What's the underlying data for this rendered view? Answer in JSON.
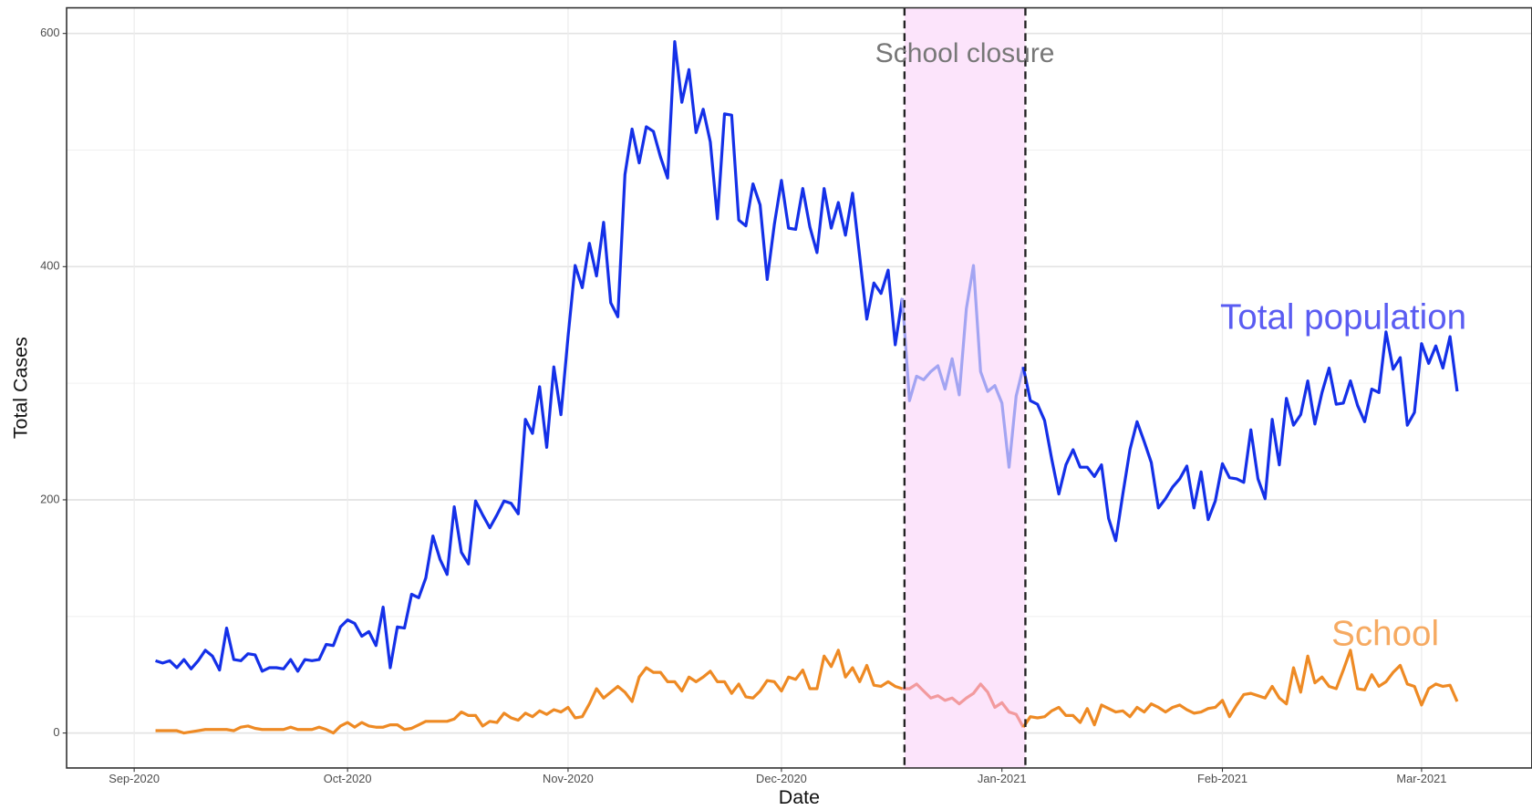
{
  "chart_data": {
    "type": "line",
    "x_label": "Date",
    "y_label": "Total Cases",
    "xlim": [
      -9.5,
      196.5
    ],
    "ylim": [
      -30,
      622
    ],
    "xticks": [
      {
        "value": 0,
        "label": "Sep-2020"
      },
      {
        "value": 30,
        "label": "Oct-2020"
      },
      {
        "value": 61,
        "label": "Nov-2020"
      },
      {
        "value": 91,
        "label": "Dec-2020"
      },
      {
        "value": 122,
        "label": "Jan-2021"
      },
      {
        "value": 153,
        "label": "Feb-2021"
      },
      {
        "value": 181,
        "label": "Mar-2021"
      }
    ],
    "yticks": [
      0,
      200,
      400,
      600
    ],
    "yminorticks": [
      100,
      300,
      500
    ],
    "grid": true,
    "shade": {
      "x": [
        108.3,
        125.3
      ],
      "label": "School closure",
      "color": "#fce4fb"
    },
    "x": [
      3,
      4,
      5,
      6,
      7,
      8,
      9,
      10,
      11,
      12,
      13,
      14,
      15,
      16,
      17,
      18,
      19,
      20,
      21,
      22,
      23,
      24,
      25,
      26,
      27,
      28,
      29,
      30,
      31,
      32,
      33,
      34,
      35,
      36,
      37,
      38,
      39,
      40,
      41,
      42,
      43,
      44,
      45,
      46,
      47,
      48,
      49,
      50,
      51,
      52,
      53,
      54,
      55,
      56,
      57,
      58,
      59,
      60,
      61,
      62,
      63,
      64,
      65,
      66,
      67,
      68,
      69,
      70,
      71,
      72,
      73,
      74,
      75,
      76,
      77,
      78,
      79,
      80,
      81,
      82,
      83,
      84,
      85,
      86,
      87,
      88,
      89,
      90,
      91,
      92,
      93,
      94,
      95,
      96,
      97,
      98,
      99,
      100,
      101,
      102,
      103,
      104,
      105,
      106,
      107,
      108,
      109,
      110,
      111,
      112,
      113,
      114,
      115,
      116,
      117,
      118,
      119,
      120,
      121,
      122,
      123,
      124,
      125,
      126,
      127,
      128,
      129,
      130,
      131,
      132,
      133,
      134,
      135,
      136,
      137,
      138,
      139,
      140,
      141,
      142,
      143,
      144,
      145,
      146,
      147,
      148,
      149,
      150,
      151,
      152,
      153,
      154,
      155,
      156,
      157,
      158,
      159,
      160,
      161,
      162,
      163,
      164,
      165,
      166,
      167,
      168,
      169,
      170,
      171,
      172,
      173,
      174,
      175,
      176,
      177,
      178,
      179,
      180,
      181,
      182,
      183,
      184,
      185,
      186
    ],
    "series": [
      {
        "name": "Total population",
        "color": "#1430e8",
        "shade_color": "#a3a4f2",
        "label_color": "#5a5cf2",
        "values": [
          62,
          60,
          62,
          56,
          63,
          55,
          62,
          71,
          66,
          54,
          90,
          63,
          62,
          68,
          67,
          53,
          56,
          56,
          55,
          63,
          53,
          63,
          62,
          63,
          76,
          75,
          91,
          97,
          94,
          83,
          87,
          75,
          108,
          56,
          91,
          90,
          119,
          116,
          133,
          169,
          149,
          136,
          194,
          155,
          145,
          199,
          187,
          176,
          187,
          199,
          197,
          188,
          269,
          257,
          297,
          245,
          314,
          273,
          340,
          401,
          382,
          420,
          392,
          438,
          369,
          357,
          479,
          518,
          489,
          520,
          516,
          494,
          476,
          593,
          541,
          569,
          515,
          535,
          507,
          441,
          531,
          530,
          440,
          435,
          471,
          453,
          389,
          436,
          474,
          433,
          432,
          467,
          434,
          412,
          467,
          433,
          455,
          427,
          463,
          409,
          355,
          386,
          377,
          397,
          333,
          373,
          285,
          306,
          303,
          310,
          315,
          295,
          321,
          290,
          364,
          401,
          310,
          293,
          298,
          283,
          228,
          289,
          314,
          285,
          282,
          268,
          235,
          205,
          230,
          243,
          228,
          228,
          220,
          230,
          184,
          165,
          205,
          243,
          267,
          250,
          232,
          193,
          201,
          211,
          218,
          229,
          193,
          224,
          183,
          199,
          231,
          219,
          218,
          215,
          260,
          218,
          201,
          269,
          230,
          287,
          264,
          273,
          302,
          265,
          292,
          313,
          282,
          283,
          302,
          281,
          267,
          295,
          292,
          344,
          312,
          322,
          264,
          275,
          334,
          317,
          332,
          313,
          340,
          293
        ]
      },
      {
        "name": "School",
        "color": "#ee8a24",
        "shade_color": "#f29a9e",
        "label_color": "#f6aa62",
        "values": [
          2,
          2,
          2,
          2,
          0,
          1,
          2,
          3,
          3,
          3,
          3,
          2,
          5,
          6,
          4,
          3,
          3,
          3,
          3,
          5,
          3,
          3,
          3,
          5,
          3,
          0,
          6,
          9,
          5,
          9,
          6,
          5,
          5,
          7,
          7,
          3,
          4,
          7,
          10,
          10,
          10,
          10,
          12,
          18,
          15,
          15,
          6,
          10,
          9,
          17,
          13,
          11,
          17,
          14,
          19,
          16,
          20,
          18,
          22,
          13,
          14,
          25,
          38,
          30,
          35,
          40,
          35,
          27,
          48,
          56,
          52,
          52,
          44,
          44,
          36,
          48,
          44,
          48,
          53,
          44,
          44,
          34,
          42,
          31,
          30,
          36,
          45,
          44,
          36,
          48,
          46,
          54,
          38,
          38,
          66,
          57,
          71,
          48,
          56,
          44,
          58,
          41,
          40,
          44,
          40,
          38,
          38,
          42,
          36,
          30,
          32,
          28,
          30,
          25,
          30,
          34,
          42,
          35,
          22,
          26,
          18,
          16,
          5,
          14,
          13,
          14,
          19,
          22,
          15,
          15,
          9,
          21,
          7,
          24,
          21,
          18,
          19,
          14,
          22,
          18,
          25,
          22,
          18,
          22,
          24,
          20,
          17,
          18,
          21,
          22,
          28,
          14,
          24,
          33,
          34,
          32,
          30,
          40,
          30,
          25,
          56,
          35,
          66,
          43,
          48,
          40,
          38,
          54,
          71,
          38,
          37,
          50,
          40,
          44,
          52,
          58,
          42,
          40,
          24,
          38,
          42,
          40,
          41,
          27
        ]
      }
    ]
  }
}
